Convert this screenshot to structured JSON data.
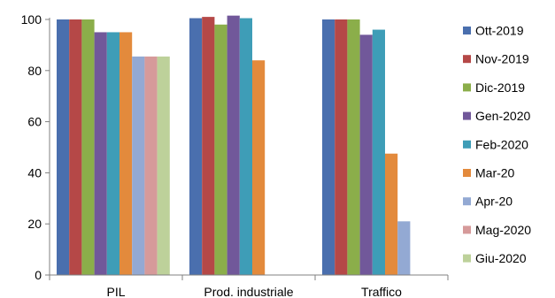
{
  "chart_data": {
    "type": "bar",
    "title": "",
    "xlabel": "",
    "ylabel": "",
    "ylim": [
      0,
      100
    ],
    "yticks": [
      "0",
      "20",
      "40",
      "60",
      "80",
      "100"
    ],
    "grid": false,
    "legend_position": "right",
    "categories": [
      "PIL",
      "Prod. industriale",
      "Traffico"
    ],
    "series": [
      {
        "name": "Ott-2019",
        "color": "#4a6fae",
        "values": [
          100,
          100.5,
          100
        ]
      },
      {
        "name": "Nov-2019",
        "color": "#b54847",
        "values": [
          100,
          101,
          100
        ]
      },
      {
        "name": "Dic-2019",
        "color": "#8bae4a",
        "values": [
          100,
          98,
          100
        ]
      },
      {
        "name": "Gen-2020",
        "color": "#71589a",
        "values": [
          95,
          101.5,
          94
        ]
      },
      {
        "name": "Feb-2020",
        "color": "#3e9db7",
        "values": [
          95,
          100.5,
          96
        ]
      },
      {
        "name": "Mar-20",
        "color": "#e38a3c",
        "values": [
          95,
          84,
          47.5
        ]
      },
      {
        "name": "Apr-20",
        "color": "#93a9d3",
        "values": [
          85.5,
          null,
          21
        ]
      },
      {
        "name": "Mag-2020",
        "color": "#d69a9a",
        "values": [
          85.5,
          null,
          null
        ]
      },
      {
        "name": "Giu-2020",
        "color": "#bdd19a",
        "values": [
          85.5,
          null,
          null
        ]
      }
    ]
  }
}
